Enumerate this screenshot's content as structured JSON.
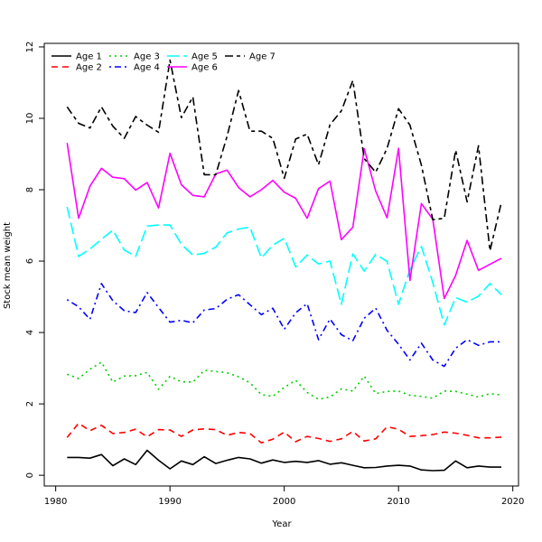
{
  "chart_data": {
    "type": "line",
    "title": "",
    "xlabel": "Year",
    "ylabel": "Stock mean weight",
    "xlim": [
      1979,
      2020.5
    ],
    "ylim": [
      -0.3,
      12.1
    ],
    "x_ticks": [
      1980,
      1990,
      2000,
      2010,
      2020
    ],
    "y_ticks": [
      0,
      2,
      4,
      6,
      8,
      10,
      12
    ],
    "grid": false,
    "legend": {
      "placement": "top-left",
      "columns": 4
    },
    "x": [
      1981,
      1982,
      1983,
      1984,
      1985,
      1986,
      1987,
      1988,
      1989,
      1990,
      1991,
      1992,
      1993,
      1994,
      1995,
      1996,
      1997,
      1998,
      1999,
      2000,
      2001,
      2002,
      2003,
      2004,
      2005,
      2006,
      2007,
      2008,
      2009,
      2010,
      2011,
      2012,
      2013,
      2014,
      2015,
      2016,
      2017,
      2018,
      2019
    ],
    "series": [
      {
        "name": "Age 1",
        "color": "#000000",
        "dash": "solid",
        "values": [
          0.5,
          0.5,
          0.48,
          0.58,
          0.27,
          0.46,
          0.3,
          0.7,
          0.42,
          0.18,
          0.4,
          0.3,
          0.52,
          0.33,
          0.42,
          0.5,
          0.46,
          0.34,
          0.43,
          0.36,
          0.39,
          0.36,
          0.41,
          0.31,
          0.35,
          0.28,
          0.21,
          0.22,
          0.26,
          0.28,
          0.26,
          0.15,
          0.13,
          0.14,
          0.4,
          0.21,
          0.26,
          0.23,
          0.23
        ]
      },
      {
        "name": "Age 2",
        "color": "#ff0000",
        "dash": "dashed",
        "values": [
          1.06,
          1.46,
          1.25,
          1.4,
          1.17,
          1.2,
          1.29,
          1.08,
          1.28,
          1.27,
          1.09,
          1.27,
          1.3,
          1.28,
          1.12,
          1.2,
          1.17,
          0.91,
          1.01,
          1.21,
          0.94,
          1.09,
          1.03,
          0.95,
          1.02,
          1.23,
          0.96,
          1.02,
          1.36,
          1.29,
          1.09,
          1.11,
          1.14,
          1.21,
          1.18,
          1.12,
          1.05,
          1.05,
          1.07
        ]
      },
      {
        "name": "Age 3",
        "color": "#00cd00",
        "dash": "dotted",
        "values": [
          2.83,
          2.71,
          2.97,
          3.17,
          2.61,
          2.78,
          2.79,
          2.88,
          2.41,
          2.77,
          2.62,
          2.61,
          2.94,
          2.91,
          2.87,
          2.76,
          2.59,
          2.26,
          2.21,
          2.46,
          2.66,
          2.32,
          2.13,
          2.19,
          2.42,
          2.36,
          2.78,
          2.29,
          2.35,
          2.36,
          2.24,
          2.21,
          2.16,
          2.36,
          2.35,
          2.27,
          2.19,
          2.29,
          2.25
        ]
      },
      {
        "name": "Age 4",
        "color": "#0000ff",
        "dash": "dotdash",
        "values": [
          4.92,
          4.72,
          4.37,
          5.37,
          4.89,
          4.61,
          4.56,
          5.12,
          4.7,
          4.29,
          4.34,
          4.27,
          4.63,
          4.67,
          4.93,
          5.06,
          4.78,
          4.5,
          4.68,
          4.09,
          4.55,
          4.81,
          3.8,
          4.38,
          3.94,
          3.77,
          4.4,
          4.68,
          4.06,
          3.67,
          3.23,
          3.7,
          3.23,
          3.05,
          3.56,
          3.8,
          3.64,
          3.74,
          3.74
        ]
      },
      {
        "name": "Age 5",
        "color": "#00ffff",
        "dash": "longdash",
        "values": [
          7.52,
          6.13,
          6.34,
          6.61,
          6.87,
          6.31,
          6.13,
          6.98,
          7.01,
          7.01,
          6.47,
          6.17,
          6.22,
          6.39,
          6.79,
          6.9,
          6.95,
          6.09,
          6.45,
          6.64,
          5.84,
          6.17,
          5.92,
          6.0,
          4.79,
          6.2,
          5.72,
          6.19,
          5.99,
          4.79,
          5.76,
          6.41,
          5.4,
          4.21,
          4.98,
          4.85,
          5.02,
          5.37,
          5.06
        ]
      },
      {
        "name": "Age 6",
        "color": "#ff00ff",
        "dash": "solid",
        "values": [
          9.31,
          7.2,
          8.1,
          8.6,
          8.35,
          8.31,
          7.99,
          8.2,
          7.49,
          9.02,
          8.14,
          7.84,
          7.8,
          8.44,
          8.55,
          8.06,
          7.8,
          8.0,
          8.26,
          7.93,
          7.76,
          7.2,
          8.03,
          8.24,
          6.6,
          6.95,
          9.15,
          7.96,
          7.21,
          9.16,
          5.46,
          7.61,
          7.17,
          4.95,
          5.6,
          6.58,
          5.74,
          5.91,
          6.08
        ]
      },
      {
        "name": "Age 7",
        "color": "#000000",
        "dash": "twodash",
        "values": [
          10.32,
          9.86,
          9.73,
          10.32,
          9.78,
          9.44,
          10.05,
          9.81,
          9.61,
          11.63,
          10.02,
          10.6,
          8.42,
          8.42,
          9.5,
          10.78,
          9.64,
          9.64,
          9.44,
          8.32,
          9.42,
          9.56,
          8.7,
          9.82,
          10.21,
          11.06,
          8.87,
          8.49,
          9.16,
          10.27,
          9.81,
          8.69,
          7.16,
          7.2,
          9.11,
          7.66,
          9.23,
          6.29,
          7.64
        ]
      }
    ]
  }
}
